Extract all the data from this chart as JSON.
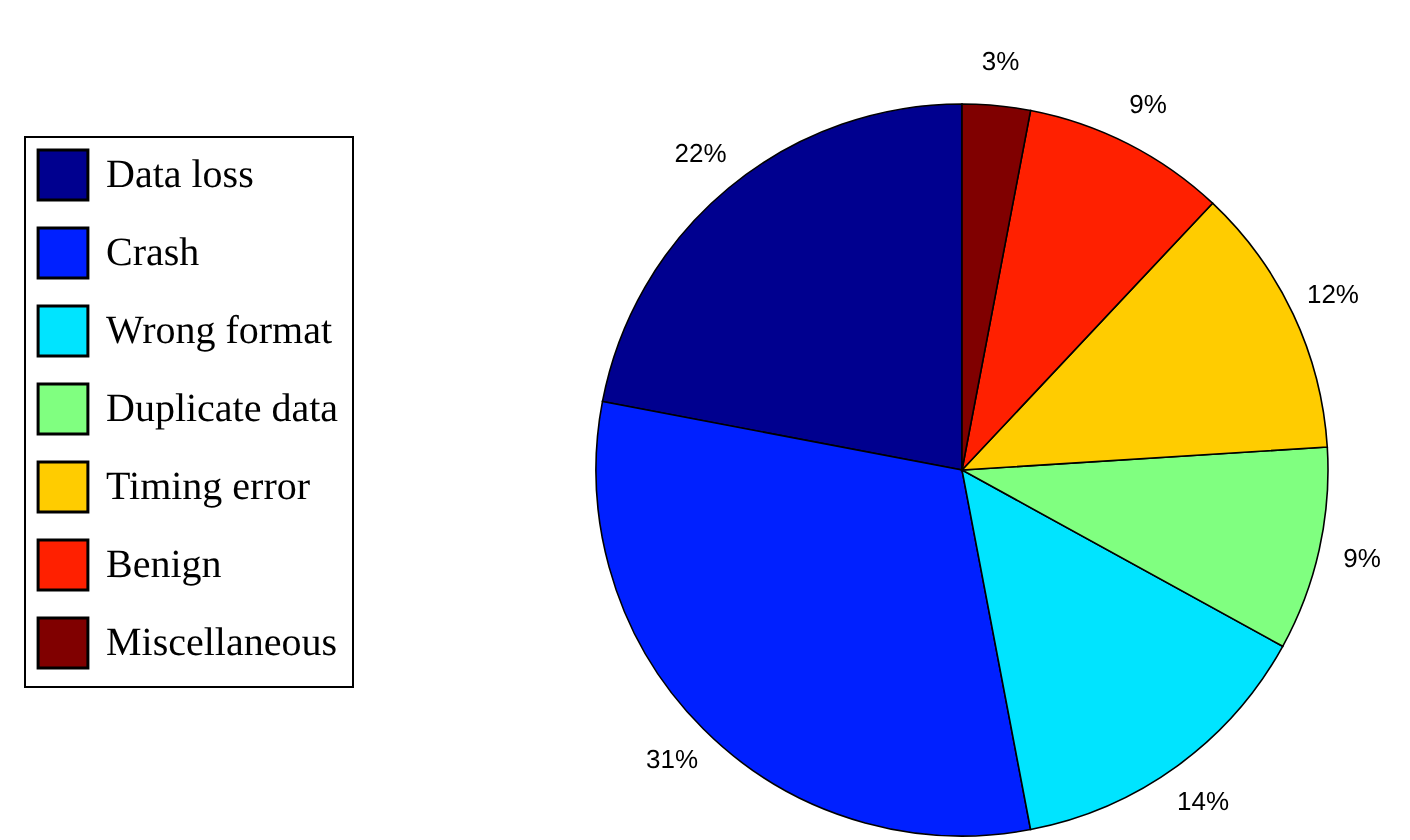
{
  "chart_data": {
    "type": "pie",
    "categories": [
      "Data loss",
      "Crash",
      "Wrong format",
      "Duplicate data",
      "Timing error",
      "Benign",
      "Miscellaneous"
    ],
    "values": [
      22,
      31,
      14,
      9,
      12,
      9,
      3
    ],
    "value_labels": [
      "22%",
      "31%",
      "14%",
      "9%",
      "12%",
      "9%",
      "3%"
    ],
    "colors": [
      "#00008f",
      "#0020ff",
      "#00e4ff",
      "#80ff80",
      "#ffcc00",
      "#ff2000",
      "#800000"
    ],
    "legend": "left"
  }
}
